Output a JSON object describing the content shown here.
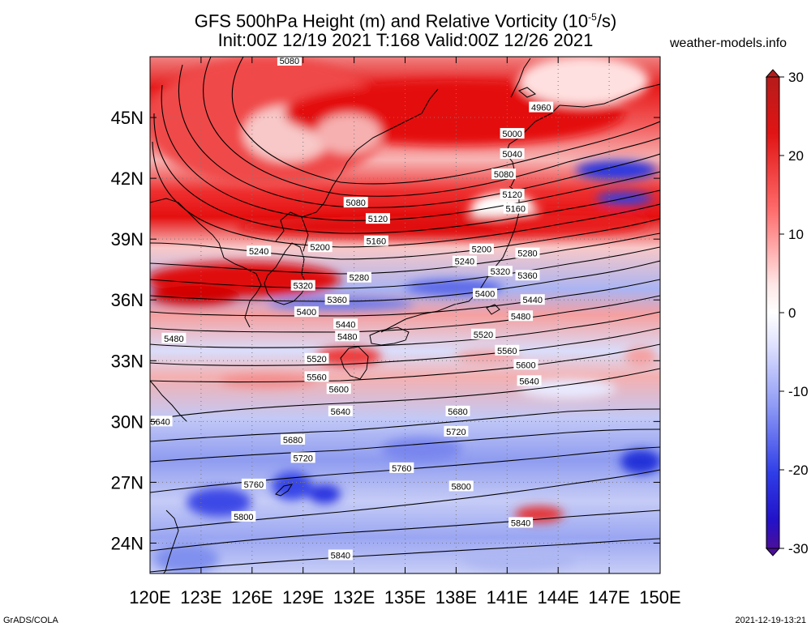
{
  "header": {
    "title_line1": "GFS 500hPa Height (m) and Relative Vorticity (10",
    "title_exp": "-5",
    "title_line1_end": "/s)",
    "title_line2": "Init:00Z 12/19 2021 T:168 Valid:00Z 12/26 2021",
    "site": "weather-models.info"
  },
  "footer": {
    "left": "GrADS/COLA",
    "right": "2021-12-19-13:21"
  },
  "map": {
    "lon_range": [
      120,
      150
    ],
    "lat_range": [
      22.5,
      48
    ],
    "lon_ticks": [
      "120E",
      "123E",
      "126E",
      "129E",
      "132E",
      "135E",
      "138E",
      "141E",
      "144E",
      "147E",
      "150E"
    ],
    "lat_ticks": [
      "24N",
      "27N",
      "30N",
      "33N",
      "36N",
      "39N",
      "42N",
      "45N"
    ],
    "contours": [
      {
        "label": "4960",
        "lon": 143.0,
        "lat": 45.5
      },
      {
        "label": "5000",
        "lon": 141.3,
        "lat": 44.2
      },
      {
        "label": "5040",
        "lon": 141.3,
        "lat": 43.2
      },
      {
        "label": "5080",
        "lon": 140.8,
        "lat": 42.2
      },
      {
        "label": "5080",
        "lon": 132.1,
        "lat": 40.8
      },
      {
        "label": "5080",
        "lon": 128.2,
        "lat": 47.8
      },
      {
        "label": "5120",
        "lon": 133.4,
        "lat": 40.0
      },
      {
        "label": "5120",
        "lon": 141.3,
        "lat": 41.2
      },
      {
        "label": "5160",
        "lon": 133.3,
        "lat": 38.9
      },
      {
        "label": "5160",
        "lon": 141.5,
        "lat": 40.5
      },
      {
        "label": "5200",
        "lon": 130.0,
        "lat": 38.6
      },
      {
        "label": "5200",
        "lon": 139.5,
        "lat": 38.5
      },
      {
        "label": "5240",
        "lon": 126.4,
        "lat": 38.4
      },
      {
        "label": "5240",
        "lon": 138.5,
        "lat": 37.9
      },
      {
        "label": "5280",
        "lon": 132.3,
        "lat": 37.1
      },
      {
        "label": "5280",
        "lon": 142.2,
        "lat": 38.3
      },
      {
        "label": "5320",
        "lon": 129.0,
        "lat": 36.7
      },
      {
        "label": "5320",
        "lon": 140.6,
        "lat": 37.4
      },
      {
        "label": "5360",
        "lon": 131.0,
        "lat": 36.0
      },
      {
        "label": "5360",
        "lon": 142.2,
        "lat": 37.2
      },
      {
        "label": "5400",
        "lon": 129.2,
        "lat": 35.4
      },
      {
        "label": "5400",
        "lon": 139.7,
        "lat": 36.3
      },
      {
        "label": "5440",
        "lon": 142.5,
        "lat": 36.0
      },
      {
        "label": "5440",
        "lon": 131.5,
        "lat": 34.8
      },
      {
        "label": "5480",
        "lon": 121.4,
        "lat": 34.1
      },
      {
        "label": "5480",
        "lon": 131.6,
        "lat": 34.2
      },
      {
        "label": "5480",
        "lon": 141.8,
        "lat": 35.2
      },
      {
        "label": "5520",
        "lon": 129.8,
        "lat": 33.1
      },
      {
        "label": "5520",
        "lon": 139.6,
        "lat": 34.3
      },
      {
        "label": "5560",
        "lon": 129.8,
        "lat": 32.2
      },
      {
        "label": "5560",
        "lon": 141.0,
        "lat": 33.5
      },
      {
        "label": "5600",
        "lon": 131.1,
        "lat": 31.6
      },
      {
        "label": "5600",
        "lon": 142.1,
        "lat": 32.8
      },
      {
        "label": "5640",
        "lon": 120.6,
        "lat": 30.0
      },
      {
        "label": "5640",
        "lon": 131.2,
        "lat": 30.5
      },
      {
        "label": "5640",
        "lon": 142.3,
        "lat": 32.0
      },
      {
        "label": "5680",
        "lon": 128.4,
        "lat": 29.1
      },
      {
        "label": "5680",
        "lon": 138.1,
        "lat": 30.5
      },
      {
        "label": "5720",
        "lon": 129.0,
        "lat": 28.2
      },
      {
        "label": "5720",
        "lon": 138.0,
        "lat": 29.5
      },
      {
        "label": "5760",
        "lon": 126.1,
        "lat": 26.9
      },
      {
        "label": "5760",
        "lon": 134.8,
        "lat": 27.7
      },
      {
        "label": "5800",
        "lon": 125.5,
        "lat": 25.3
      },
      {
        "label": "5800",
        "lon": 138.3,
        "lat": 26.8
      },
      {
        "label": "5840",
        "lon": 131.2,
        "lat": 23.4
      },
      {
        "label": "5840",
        "lon": 141.8,
        "lat": 25.0
      }
    ],
    "colors": {
      "strong_red": "#e00000",
      "light_red": "#f6a8a8",
      "white": "#ffffff",
      "light_blue": "#b4bdf0",
      "strong_blue": "#1b24e0"
    }
  },
  "colorbar": {
    "labels": [
      "30",
      "20",
      "10",
      "0",
      "-10",
      "-20",
      "-30"
    ],
    "stops": [
      "#b61b1b",
      "#e11414",
      "#ff6a6a",
      "#ffe6e6",
      "#ffffff",
      "#e4e6ff",
      "#8d99f5",
      "#2f3de8",
      "#2212c8",
      "#4a0f9a"
    ]
  }
}
